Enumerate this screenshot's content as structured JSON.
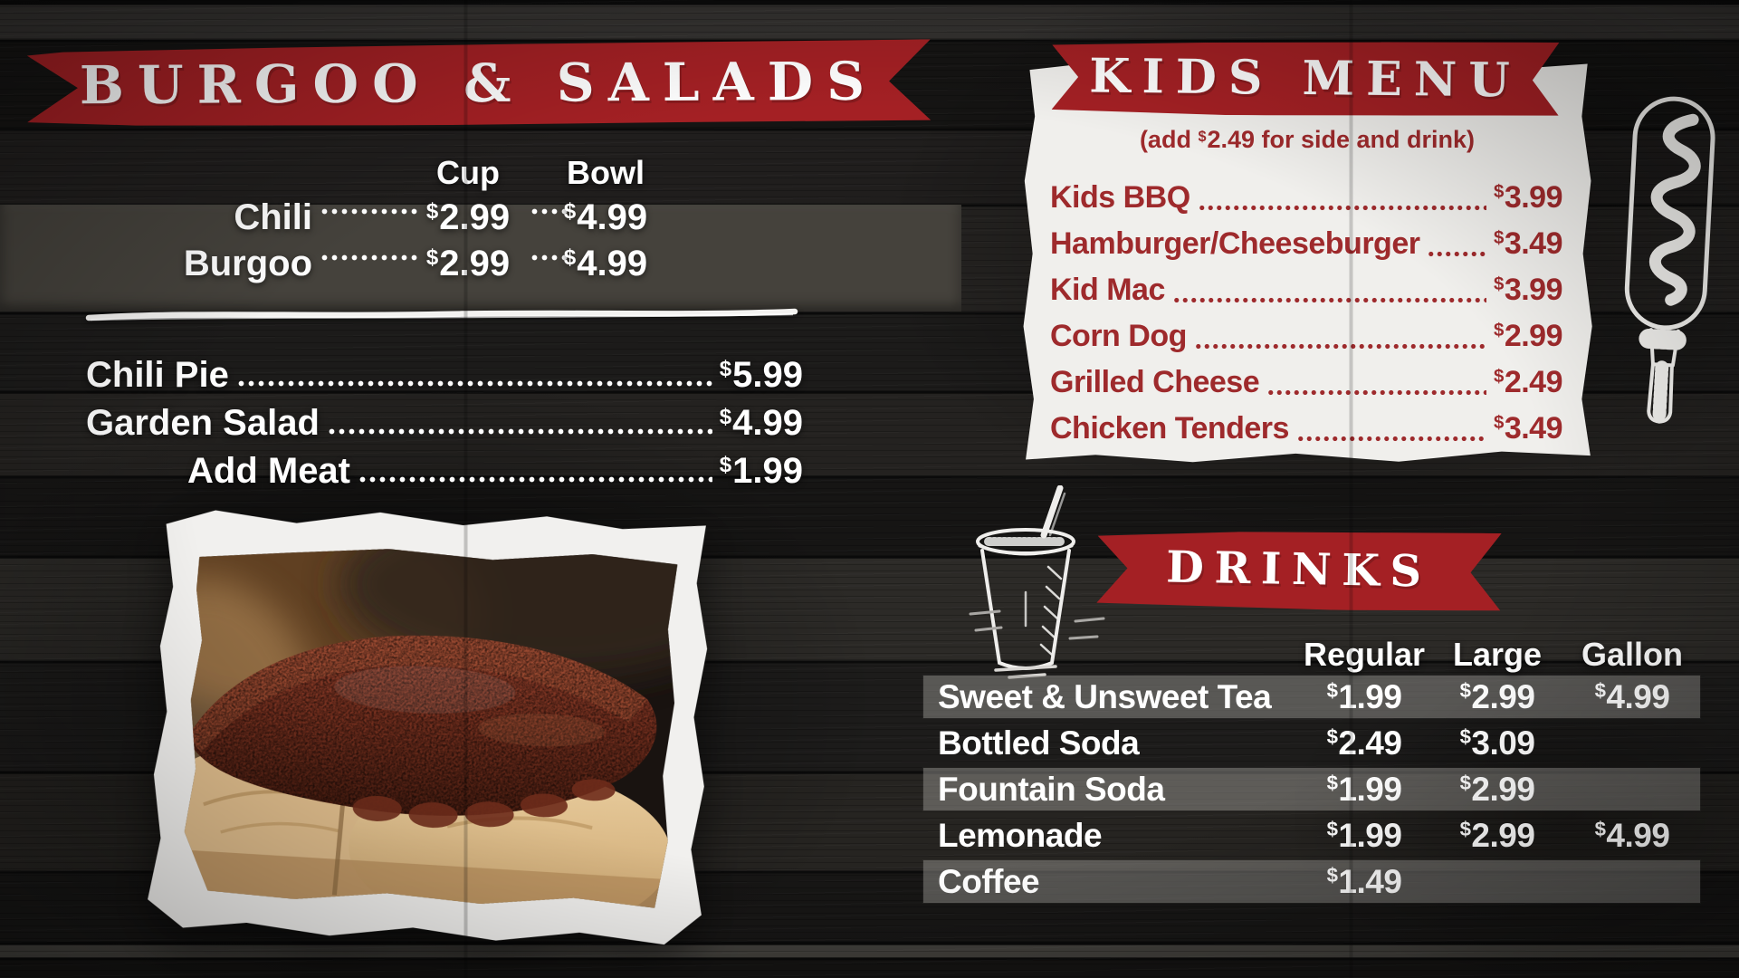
{
  "currency": "$",
  "colors": {
    "banner_red": "#a42024",
    "menu_red": "#9e2a2c",
    "panel_white": "#f0efec",
    "text_white": "#ffffff"
  },
  "sections": {
    "burgoo_salads": {
      "title": "BURGOO & SALADS",
      "size_columns": [
        "Cup",
        "Bowl"
      ],
      "sized_items": [
        {
          "name": "Chili",
          "prices": [
            "2.99",
            "4.99"
          ]
        },
        {
          "name": "Burgoo",
          "prices": [
            "2.99",
            "4.99"
          ]
        }
      ],
      "items": [
        {
          "name": "Chili Pie",
          "price": "5.99"
        },
        {
          "name": "Garden Salad",
          "price": "4.99"
        },
        {
          "name": "Add Meat",
          "price": "1.99"
        }
      ]
    },
    "kids_menu": {
      "title": "KIDS MENU",
      "note_prefix": "(add ",
      "note_amount": "2.49",
      "note_suffix": " for side and drink)",
      "items": [
        {
          "name": "Kids BBQ",
          "price": "3.99"
        },
        {
          "name": "Hamburger/Cheeseburger",
          "price": "3.49"
        },
        {
          "name": "Kid Mac",
          "price": "3.99"
        },
        {
          "name": "Corn Dog",
          "price": "2.99"
        },
        {
          "name": "Grilled Cheese",
          "price": "2.49"
        },
        {
          "name": "Chicken Tenders",
          "price": "3.49"
        }
      ]
    },
    "drinks": {
      "title": "DRINKS",
      "columns": [
        "Regular",
        "Large",
        "Gallon"
      ],
      "items": [
        {
          "name": "Sweet & Unsweet Tea",
          "prices": [
            "1.99",
            "2.99",
            "4.99"
          ]
        },
        {
          "name": "Bottled Soda",
          "prices": [
            "2.49",
            "3.09",
            null
          ]
        },
        {
          "name": "Fountain Soda",
          "prices": [
            "1.99",
            "2.99",
            null
          ]
        },
        {
          "name": "Lemonade",
          "prices": [
            "1.99",
            "2.99",
            "4.99"
          ]
        },
        {
          "name": "Coffee",
          "prices": [
            "1.49",
            null,
            null
          ]
        }
      ]
    }
  },
  "illustrations": {
    "ribs_photo": "smoked-ribs-on-wood-board-photo",
    "corn_dog": "corn-dog-sketch-icon",
    "drink_cup": "fountain-drink-cup-sketch-icon"
  }
}
